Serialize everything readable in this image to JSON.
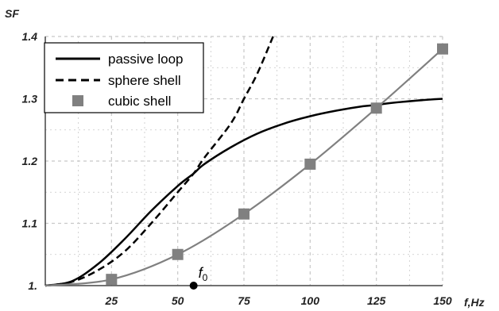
{
  "chart_data": {
    "type": "line",
    "title": "",
    "xlabel": "f,Hz",
    "ylabel": "SF",
    "xlim": [
      0,
      150
    ],
    "ylim": [
      1.0,
      1.4
    ],
    "x_ticks": [
      25,
      50,
      75,
      100,
      125,
      150
    ],
    "x_tick_labels": [
      "25",
      "50",
      "75",
      "100",
      "125",
      "150"
    ],
    "y_ticks": [
      1.0,
      1.1,
      1.2,
      1.3,
      1.4
    ],
    "y_tick_labels": [
      "1.",
      "1.1",
      "1.2",
      "1.3",
      "1.4"
    ],
    "grid": true,
    "legend_position": "top-left",
    "series": [
      {
        "name": "passive loop",
        "style": "solid",
        "color": "#000000",
        "x": [
          0,
          10,
          20,
          30,
          40,
          50,
          56,
          60,
          70,
          80,
          90,
          100,
          110,
          120,
          125,
          130,
          140,
          150
        ],
        "y": [
          1.0,
          1.007,
          1.035,
          1.075,
          1.12,
          1.16,
          1.18,
          1.195,
          1.222,
          1.244,
          1.26,
          1.272,
          1.281,
          1.288,
          1.29,
          1.293,
          1.297,
          1.3
        ]
      },
      {
        "name": "sphere shell",
        "style": "dashed",
        "color": "#000000",
        "x": [
          0,
          10,
          20,
          30,
          40,
          50,
          56,
          60,
          70,
          75,
          80,
          86
        ],
        "y": [
          1.0,
          1.006,
          1.025,
          1.055,
          1.1,
          1.15,
          1.18,
          1.205,
          1.26,
          1.3,
          1.34,
          1.4
        ]
      },
      {
        "name": "cubic shell",
        "style": "markers",
        "color": "#808080",
        "x": [
          0,
          25,
          50,
          75,
          100,
          125,
          150
        ],
        "y": [
          1.0,
          1.01,
          1.05,
          1.115,
          1.195,
          1.285,
          1.38
        ]
      }
    ],
    "annotations": [
      {
        "label": "f",
        "subscript": "0",
        "x": 56,
        "y": 1.0
      }
    ]
  },
  "colors": {
    "grid": "#c8c8c8",
    "cubic_marker": "#808080",
    "line": "#000000"
  }
}
